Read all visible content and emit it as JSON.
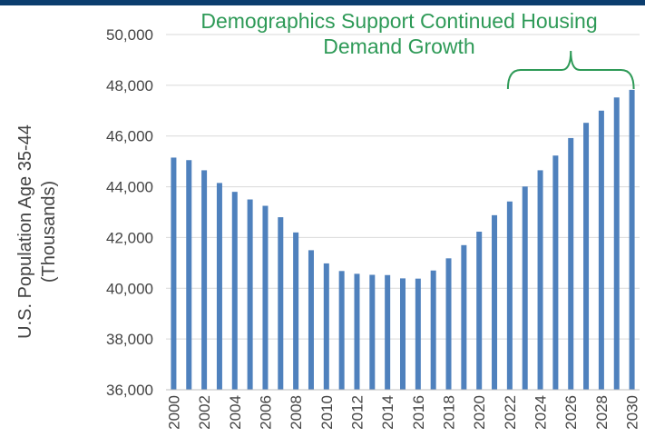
{
  "annotation": {
    "line1": "Demographics Support Continued Housing",
    "line2": "Demand Growth"
  },
  "colors": {
    "bar": "#4f81bd",
    "annotation": "#2e9a57",
    "top_bar": "#0b3d6e",
    "grid": "#d9d9d9"
  },
  "chart_data": {
    "type": "bar",
    "title": "",
    "ylabel_line1": "U.S. Population Age 35-44",
    "ylabel_line2": "(Thousands)",
    "ylim": [
      36000,
      50000
    ],
    "yticks": [
      36000,
      38000,
      40000,
      42000,
      44000,
      46000,
      48000,
      50000
    ],
    "ytick_labels": [
      "36,000",
      "38,000",
      "40,000",
      "42,000",
      "44,000",
      "46,000",
      "48,000",
      "50,000"
    ],
    "categories": [
      "2000",
      "2001",
      "2002",
      "2003",
      "2004",
      "2005",
      "2006",
      "2007",
      "2008",
      "2009",
      "2010",
      "2011",
      "2012",
      "2013",
      "2014",
      "2015",
      "2016",
      "2017",
      "2018",
      "2019",
      "2020",
      "2021",
      "2022",
      "2023",
      "2024",
      "2025",
      "2026",
      "2027",
      "2028",
      "2029",
      "2030"
    ],
    "x_labels_shown": [
      "2000",
      "2002",
      "2004",
      "2006",
      "2008",
      "2010",
      "2012",
      "2014",
      "2016",
      "2018",
      "2020",
      "2022",
      "2024",
      "2026",
      "2028",
      "2030"
    ],
    "values": [
      45150,
      45050,
      44650,
      44150,
      43800,
      43500,
      43250,
      42800,
      42200,
      41500,
      40980,
      40680,
      40570,
      40530,
      40520,
      40390,
      40380,
      40700,
      41180,
      41700,
      42230,
      42880,
      43420,
      44010,
      44650,
      45230,
      45920,
      46520,
      47000,
      47520,
      47820
    ],
    "grid": true,
    "bracket_range": [
      "2022",
      "2030"
    ]
  }
}
